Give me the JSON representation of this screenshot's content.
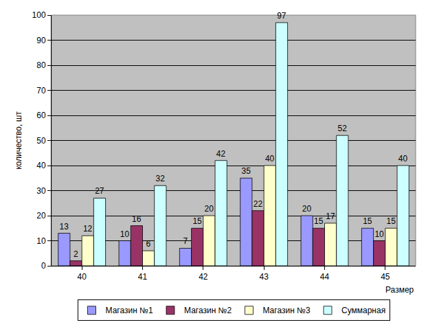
{
  "chart_data": {
    "type": "bar",
    "categories": [
      "40",
      "41",
      "42",
      "43",
      "44",
      "45"
    ],
    "xlabel": "Размер",
    "ylabel": "количество, шт",
    "series": [
      {
        "name": "Магазин №1",
        "color": "#9999ff",
        "values": [
          13,
          10,
          7,
          35,
          20,
          15
        ]
      },
      {
        "name": "Магазин №2",
        "color": "#993366",
        "values": [
          2,
          16,
          15,
          22,
          15,
          10
        ]
      },
      {
        "name": "Магазин №3",
        "color": "#ffffcc",
        "values": [
          12,
          6,
          20,
          40,
          17,
          15
        ]
      },
      {
        "name": "Суммарная",
        "color": "#ccffff",
        "values": [
          27,
          32,
          42,
          97,
          52,
          40
        ]
      }
    ],
    "ylim": [
      0,
      100
    ],
    "yticks": [
      0,
      10,
      20,
      30,
      40,
      50,
      60,
      70,
      80,
      90,
      100
    ],
    "grid": true,
    "data_labels": true,
    "legend": "bottom"
  }
}
